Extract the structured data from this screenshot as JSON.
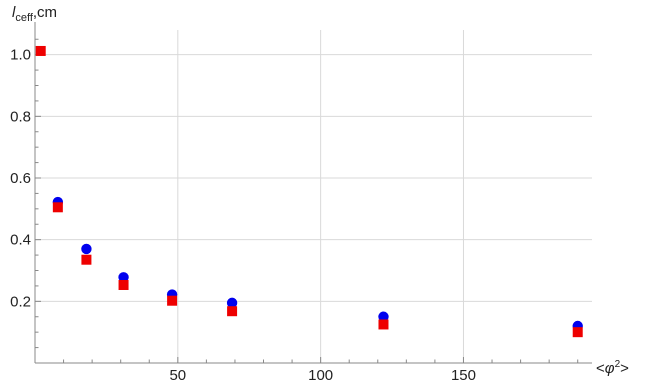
{
  "chart_data": {
    "type": "scatter",
    "y_label_main": "l",
    "y_label_sub": "ceff",
    "y_label_suffix": ",cm",
    "x_label_pre": "<",
    "x_label_phi": "φ",
    "x_label_exp": "2",
    "x_label_post": ">",
    "xlim": [
      0,
      195
    ],
    "ylim": [
      0,
      1.08
    ],
    "grid": true,
    "x_ticks": [
      {
        "value": 50,
        "label": "50"
      },
      {
        "value": 100,
        "label": "100"
      },
      {
        "value": 150,
        "label": "150"
      }
    ],
    "y_ticks": [
      {
        "value": 0.2,
        "label": "0.2"
      },
      {
        "value": 0.4,
        "label": "0.4"
      },
      {
        "value": 0.6,
        "label": "0.6"
      },
      {
        "value": 0.8,
        "label": "0.8"
      },
      {
        "value": 1.0,
        "label": "1.0"
      }
    ],
    "series": [
      {
        "marker": "circle",
        "color": "#0000ee",
        "points": [
          {
            "x": 8,
            "y": 0.522
          },
          {
            "x": 18,
            "y": 0.37
          },
          {
            "x": 31,
            "y": 0.278
          },
          {
            "x": 48,
            "y": 0.222
          },
          {
            "x": 69,
            "y": 0.195
          },
          {
            "x": 122,
            "y": 0.15
          },
          {
            "x": 190,
            "y": 0.12
          }
        ]
      },
      {
        "marker": "square",
        "color": "#ee0000",
        "points": [
          {
            "x": 2,
            "y": 1.012
          },
          {
            "x": 8,
            "y": 0.505
          },
          {
            "x": 18,
            "y": 0.335
          },
          {
            "x": 31,
            "y": 0.253
          },
          {
            "x": 48,
            "y": 0.202
          },
          {
            "x": 69,
            "y": 0.168
          },
          {
            "x": 122,
            "y": 0.125
          },
          {
            "x": 190,
            "y": 0.1
          }
        ]
      }
    ]
  }
}
